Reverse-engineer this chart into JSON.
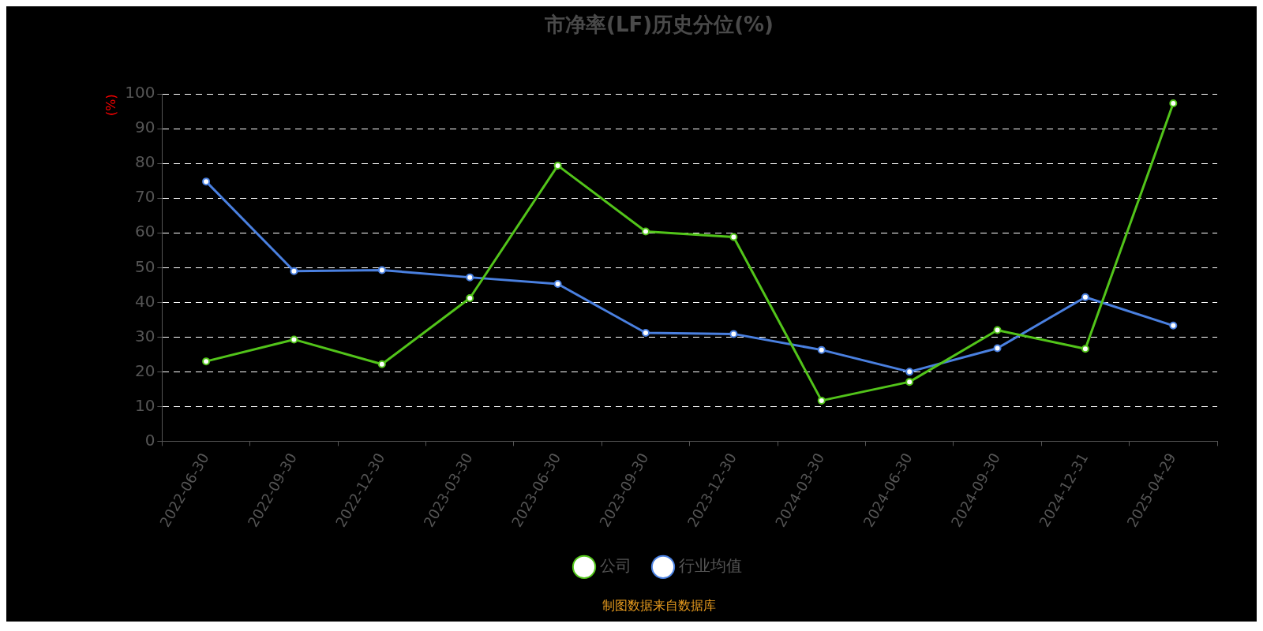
{
  "chart_data": {
    "type": "line",
    "title": "市净率(LF)历史分位(%)",
    "ylabel": "(%)",
    "categories": [
      "2022-06-30",
      "2022-09-30",
      "2022-12-30",
      "2023-03-30",
      "2023-06-30",
      "2023-09-30",
      "2023-12-30",
      "2024-03-30",
      "2024-06-30",
      "2024-09-30",
      "2024-12-31",
      "2025-04-29"
    ],
    "series": [
      {
        "name": "公司",
        "color": "#52c41a",
        "values": [
          23.0,
          29.3,
          22.2,
          41.2,
          79.4,
          60.4,
          58.8,
          11.7,
          17.1,
          32.0,
          26.6,
          97.3
        ]
      },
      {
        "name": "行业均值",
        "color": "#4a80e0",
        "values": [
          74.8,
          49.0,
          49.3,
          47.2,
          45.3,
          31.2,
          30.9,
          26.3,
          20.0,
          26.8,
          41.5,
          33.3
        ]
      }
    ],
    "ylim": [
      0,
      100
    ],
    "yticks": [
      0,
      10,
      20,
      30,
      40,
      50,
      60,
      70,
      80,
      90,
      100
    ],
    "grid": "y",
    "legend": "bottom",
    "marker": "circle",
    "line_style": "solid",
    "annotations": [
      "制图数据来自数据库"
    ]
  }
}
